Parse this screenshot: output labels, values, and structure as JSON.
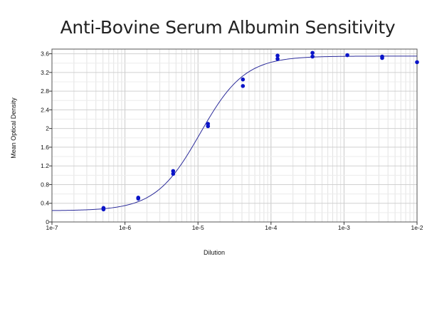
{
  "chart_data": {
    "type": "scatter",
    "title": "Anti-Bovine Serum Albumin Sensitivity",
    "xlabel": "Dilution",
    "ylabel": "Mean Optical Density",
    "x_scale": "log",
    "xlim": [
      1e-07,
      0.01
    ],
    "ylim": [
      0,
      3.7
    ],
    "x_ticks": [
      1e-07,
      1e-06,
      1e-05,
      0.0001,
      0.001,
      0.01
    ],
    "x_tick_labels": [
      "1e-7",
      "1e-6",
      "1e-5",
      "1e-4",
      "1e-3",
      "1e-2"
    ],
    "y_ticks": [
      0,
      0.4,
      0.8,
      1.2,
      1.6,
      2,
      2.4,
      2.8,
      3.2,
      3.6
    ],
    "y_tick_labels": [
      "0",
      "0.4",
      "0.8",
      "1.2",
      "1.6",
      "2",
      "2.4",
      "2.8",
      "3.2",
      "3.6"
    ],
    "grid": true,
    "marker_color": "#0a14c8",
    "fit_color": "#2b2b9a",
    "points": [
      {
        "x": 5.08e-07,
        "y": 0.3
      },
      {
        "x": 5.08e-07,
        "y": 0.27
      },
      {
        "x": 1.52e-06,
        "y": 0.52
      },
      {
        "x": 1.52e-06,
        "y": 0.5
      },
      {
        "x": 4.57e-06,
        "y": 1.09
      },
      {
        "x": 4.57e-06,
        "y": 1.03
      },
      {
        "x": 1.37e-05,
        "y": 2.1
      },
      {
        "x": 1.37e-05,
        "y": 2.05
      },
      {
        "x": 4.12e-05,
        "y": 3.05
      },
      {
        "x": 4.12e-05,
        "y": 2.91
      },
      {
        "x": 0.000123,
        "y": 3.56
      },
      {
        "x": 0.000123,
        "y": 3.49
      },
      {
        "x": 0.00037,
        "y": 3.62
      },
      {
        "x": 0.00037,
        "y": 3.54
      },
      {
        "x": 0.00111,
        "y": 3.57
      },
      {
        "x": 0.00333,
        "y": 3.54
      },
      {
        "x": 0.00333,
        "y": 3.51
      },
      {
        "x": 0.01,
        "y": 3.42
      }
    ],
    "fit": {
      "model": "4PL",
      "bottom": 0.24,
      "top": 3.55,
      "ec50": 1.07e-05,
      "hill": 1.42
    }
  }
}
